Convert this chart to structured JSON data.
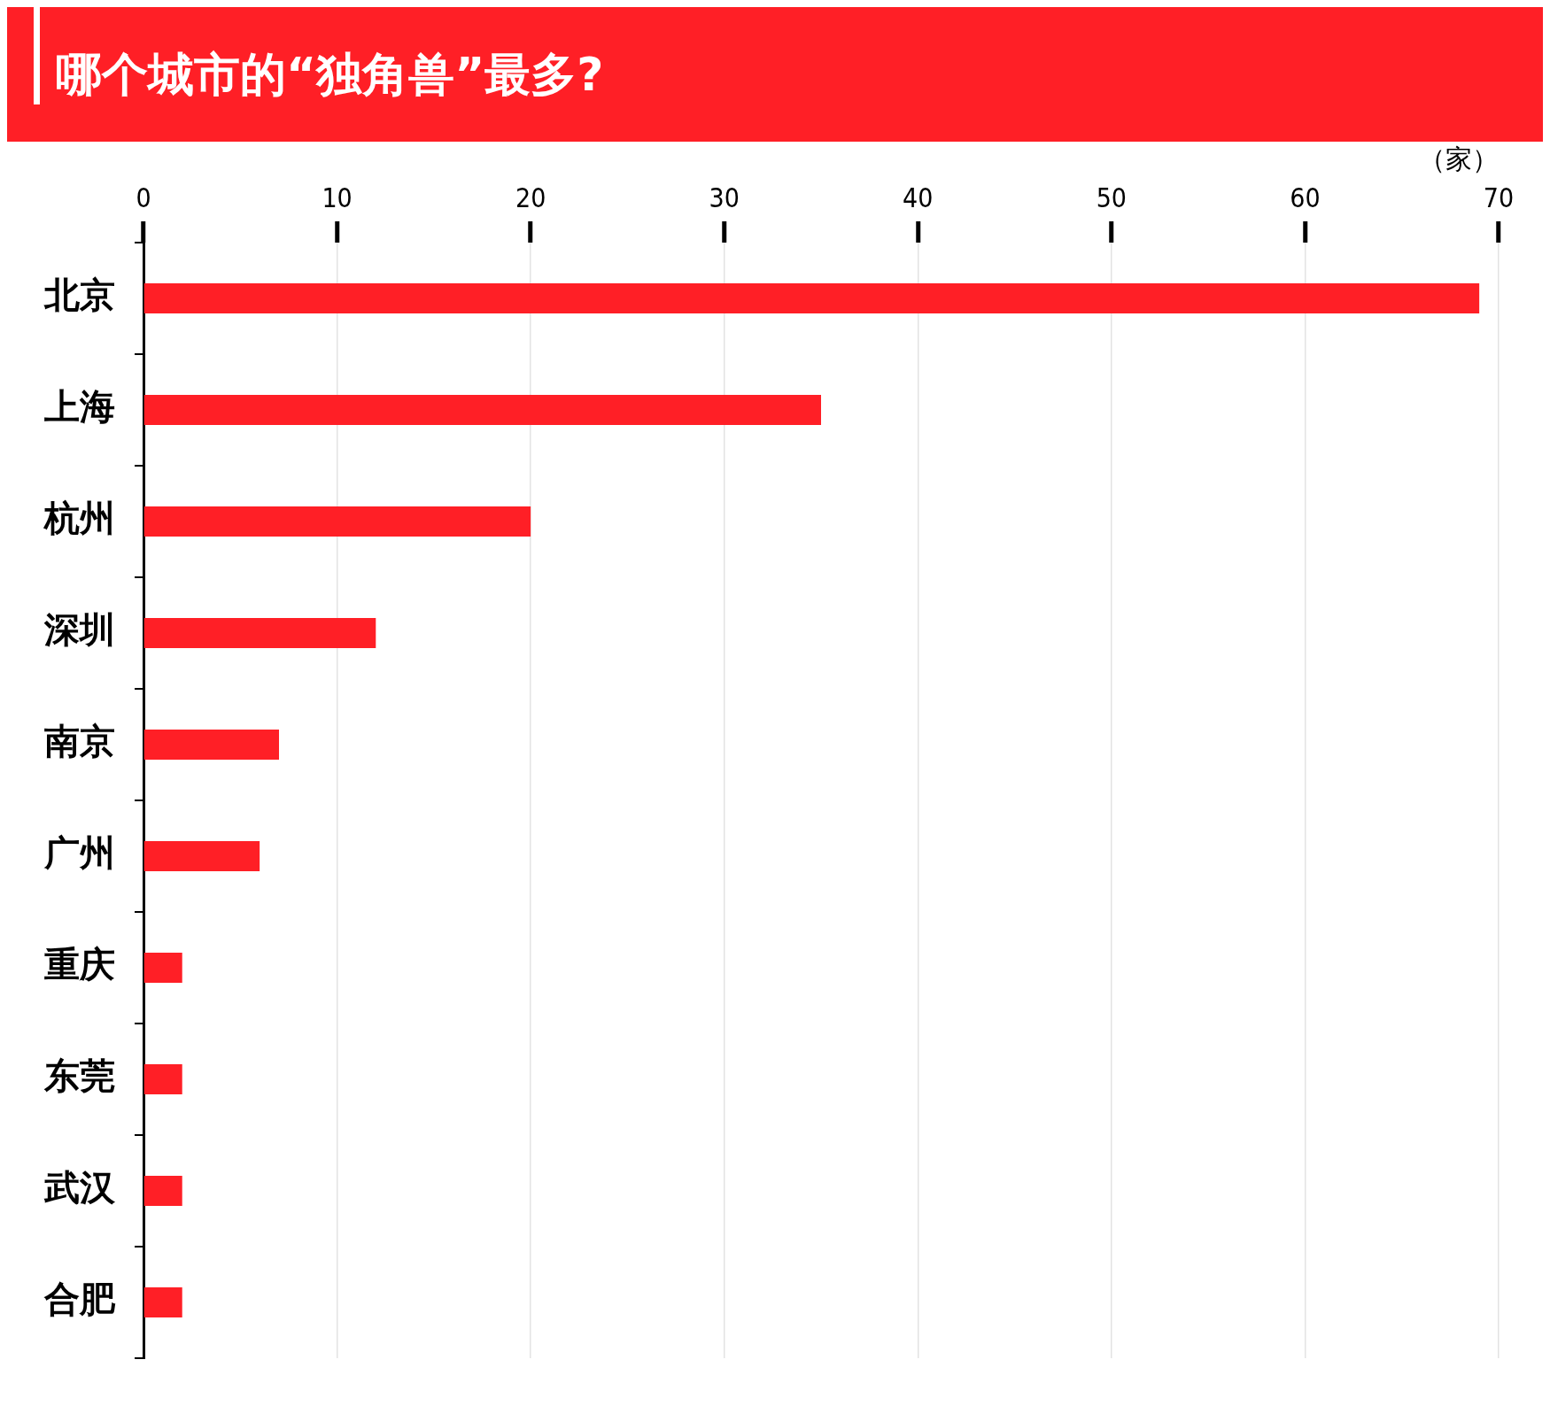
{
  "chart_data": {
    "type": "bar",
    "orientation": "horizontal",
    "title": "哪个城市的“独角兽”最多?",
    "xlabel": "（家）",
    "categories": [
      "北京",
      "上海",
      "杭州",
      "深圳",
      "南京",
      "广州",
      "重庆",
      "东莞",
      "武汉",
      "合肥"
    ],
    "values": [
      69,
      35,
      20,
      12,
      7,
      6,
      2,
      2,
      2,
      2
    ],
    "color": "#ff1f26",
    "xlim": [
      0,
      70
    ],
    "xticks": [
      0,
      10,
      20,
      30,
      40,
      50,
      60,
      70
    ],
    "grid": "x"
  }
}
